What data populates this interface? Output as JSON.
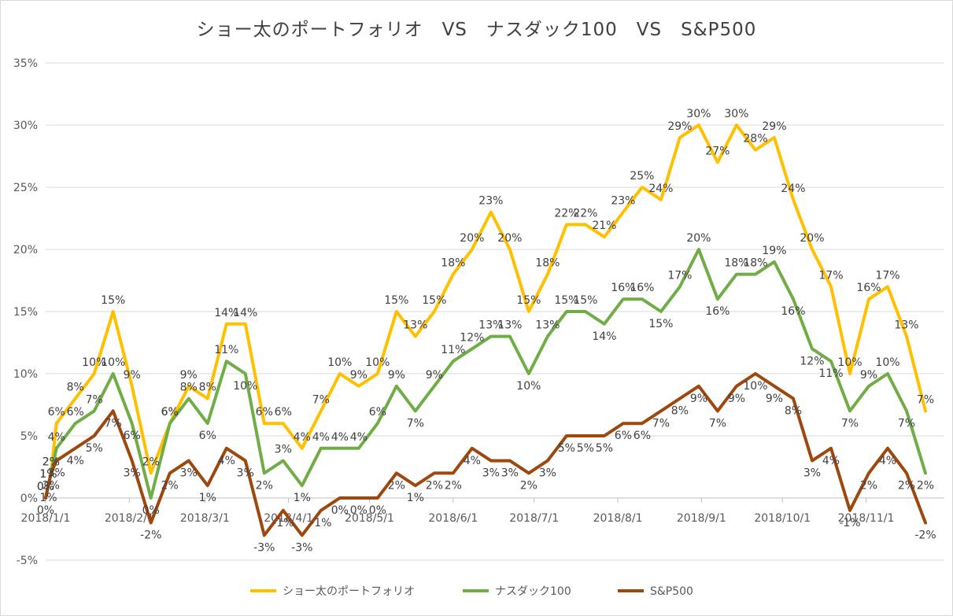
{
  "chart_data": {
    "type": "line",
    "title": "ショー太のポートフォリオ　VS　ナスダック100　VS　S&P500",
    "xlabel": "",
    "ylabel": "",
    "ylim": [
      -5,
      35
    ],
    "yticks": [
      35,
      30,
      25,
      20,
      15,
      10,
      5,
      0,
      -5
    ],
    "ytick_labels": [
      "35%",
      "30%",
      "25%",
      "20%",
      "15%",
      "10%",
      "5%",
      "0%",
      "-5%"
    ],
    "x_start": "2018-01-01",
    "x_end": "2018-11-30",
    "xtick_dates": [
      "2018-01-01",
      "2018-02-01",
      "2018-03-01",
      "2018-04-01",
      "2018-05-01",
      "2018-06-01",
      "2018-07-01",
      "2018-08-01",
      "2018-09-01",
      "2018-10-01",
      "2018-11-01"
    ],
    "xtick_labels": [
      "2018/1/1",
      "2018/2/1",
      "2018/3/1",
      "2018/4/1",
      "2018/5/1",
      "2018/6/1",
      "2018/7/1",
      "2018/8/1",
      "2018/9/1",
      "2018/10/1",
      "2018/11/1"
    ],
    "grid": "horizontal",
    "legend_position": "bottom",
    "series": [
      {
        "name": "ショー太のポートフォリオ",
        "color": "#ffc000",
        "points": [
          [
            "2018-01-01",
            0
          ],
          [
            "2018-01-02",
            1
          ],
          [
            "2018-01-03",
            2
          ],
          [
            "2018-01-05",
            6
          ],
          [
            "2018-01-12",
            8
          ],
          [
            "2018-01-19",
            10
          ],
          [
            "2018-01-26",
            15
          ],
          [
            "2018-02-02",
            9
          ],
          [
            "2018-02-09",
            2
          ],
          [
            "2018-02-16",
            6
          ],
          [
            "2018-02-23",
            9
          ],
          [
            "2018-03-02",
            8
          ],
          [
            "2018-03-09",
            14
          ],
          [
            "2018-03-16",
            14
          ],
          [
            "2018-03-23",
            6
          ],
          [
            "2018-03-30",
            6
          ],
          [
            "2018-04-06",
            4
          ],
          [
            "2018-04-13",
            7
          ],
          [
            "2018-04-20",
            10
          ],
          [
            "2018-04-27",
            9
          ],
          [
            "2018-05-04",
            10
          ],
          [
            "2018-05-11",
            15
          ],
          [
            "2018-05-18",
            13
          ],
          [
            "2018-05-25",
            15
          ],
          [
            "2018-06-01",
            18
          ],
          [
            "2018-06-08",
            20
          ],
          [
            "2018-06-15",
            23
          ],
          [
            "2018-06-22",
            20
          ],
          [
            "2018-06-29",
            15
          ],
          [
            "2018-07-06",
            18
          ],
          [
            "2018-07-13",
            22
          ],
          [
            "2018-07-20",
            22
          ],
          [
            "2018-07-27",
            21
          ],
          [
            "2018-08-03",
            23
          ],
          [
            "2018-08-10",
            25
          ],
          [
            "2018-08-17",
            24
          ],
          [
            "2018-08-24",
            29
          ],
          [
            "2018-08-31",
            30
          ],
          [
            "2018-09-07",
            27
          ],
          [
            "2018-09-14",
            30
          ],
          [
            "2018-09-21",
            28
          ],
          [
            "2018-09-28",
            29
          ],
          [
            "2018-10-05",
            24
          ],
          [
            "2018-10-12",
            20
          ],
          [
            "2018-10-19",
            17
          ],
          [
            "2018-10-26",
            10
          ],
          [
            "2018-11-02",
            16
          ],
          [
            "2018-11-09",
            17
          ],
          [
            "2018-11-16",
            13
          ],
          [
            "2018-11-23",
            7
          ]
        ]
      },
      {
        "name": "ナスダック100",
        "color": "#70ad47",
        "points": [
          [
            "2018-01-01",
            0
          ],
          [
            "2018-01-02",
            1
          ],
          [
            "2018-01-03",
            2
          ],
          [
            "2018-01-05",
            4
          ],
          [
            "2018-01-12",
            6
          ],
          [
            "2018-01-19",
            7
          ],
          [
            "2018-01-26",
            10
          ],
          [
            "2018-02-02",
            6
          ],
          [
            "2018-02-09",
            0
          ],
          [
            "2018-02-16",
            6
          ],
          [
            "2018-02-23",
            8
          ],
          [
            "2018-03-02",
            6
          ],
          [
            "2018-03-09",
            11
          ],
          [
            "2018-03-16",
            10
          ],
          [
            "2018-03-23",
            2
          ],
          [
            "2018-03-30",
            3
          ],
          [
            "2018-04-06",
            1
          ],
          [
            "2018-04-13",
            4
          ],
          [
            "2018-04-20",
            4
          ],
          [
            "2018-04-27",
            4
          ],
          [
            "2018-05-04",
            6
          ],
          [
            "2018-05-11",
            9
          ],
          [
            "2018-05-18",
            7
          ],
          [
            "2018-05-25",
            9
          ],
          [
            "2018-06-01",
            11
          ],
          [
            "2018-06-08",
            12
          ],
          [
            "2018-06-15",
            13
          ],
          [
            "2018-06-22",
            13
          ],
          [
            "2018-06-29",
            10
          ],
          [
            "2018-07-06",
            13
          ],
          [
            "2018-07-13",
            15
          ],
          [
            "2018-07-20",
            15
          ],
          [
            "2018-07-27",
            14
          ],
          [
            "2018-08-03",
            16
          ],
          [
            "2018-08-10",
            16
          ],
          [
            "2018-08-17",
            15
          ],
          [
            "2018-08-24",
            17
          ],
          [
            "2018-08-31",
            20
          ],
          [
            "2018-09-07",
            16
          ],
          [
            "2018-09-14",
            18
          ],
          [
            "2018-09-21",
            18
          ],
          [
            "2018-09-28",
            19
          ],
          [
            "2018-10-05",
            16
          ],
          [
            "2018-10-12",
            12
          ],
          [
            "2018-10-19",
            11
          ],
          [
            "2018-10-26",
            7
          ],
          [
            "2018-11-02",
            9
          ],
          [
            "2018-11-09",
            10
          ],
          [
            "2018-11-16",
            7
          ],
          [
            "2018-11-23",
            2
          ]
        ]
      },
      {
        "name": "S&P500",
        "color": "#9e480e",
        "points": [
          [
            "2018-01-01",
            0
          ],
          [
            "2018-01-02",
            1
          ],
          [
            "2018-01-03",
            2
          ],
          [
            "2018-01-05",
            3
          ],
          [
            "2018-01-12",
            4
          ],
          [
            "2018-01-19",
            5
          ],
          [
            "2018-01-26",
            7
          ],
          [
            "2018-02-02",
            3
          ],
          [
            "2018-02-09",
            -2
          ],
          [
            "2018-02-16",
            2
          ],
          [
            "2018-02-23",
            3
          ],
          [
            "2018-03-02",
            1
          ],
          [
            "2018-03-09",
            4
          ],
          [
            "2018-03-16",
            3
          ],
          [
            "2018-03-23",
            -3
          ],
          [
            "2018-03-30",
            -1
          ],
          [
            "2018-04-06",
            -3
          ],
          [
            "2018-04-13",
            -1
          ],
          [
            "2018-04-20",
            0
          ],
          [
            "2018-04-27",
            0
          ],
          [
            "2018-05-04",
            0
          ],
          [
            "2018-05-11",
            2
          ],
          [
            "2018-05-18",
            1
          ],
          [
            "2018-05-25",
            2
          ],
          [
            "2018-06-01",
            2
          ],
          [
            "2018-06-08",
            4
          ],
          [
            "2018-06-15",
            3
          ],
          [
            "2018-06-22",
            3
          ],
          [
            "2018-06-29",
            2
          ],
          [
            "2018-07-06",
            3
          ],
          [
            "2018-07-13",
            5
          ],
          [
            "2018-07-20",
            5
          ],
          [
            "2018-07-27",
            5
          ],
          [
            "2018-08-03",
            6
          ],
          [
            "2018-08-10",
            6
          ],
          [
            "2018-08-17",
            7
          ],
          [
            "2018-08-24",
            8
          ],
          [
            "2018-08-31",
            9
          ],
          [
            "2018-09-07",
            7
          ],
          [
            "2018-09-14",
            9
          ],
          [
            "2018-09-21",
            10
          ],
          [
            "2018-09-28",
            9
          ],
          [
            "2018-10-05",
            8
          ],
          [
            "2018-10-12",
            3
          ],
          [
            "2018-10-19",
            4
          ],
          [
            "2018-10-26",
            -1
          ],
          [
            "2018-11-02",
            2
          ],
          [
            "2018-11-09",
            4
          ],
          [
            "2018-11-16",
            2
          ],
          [
            "2018-11-23",
            -2
          ]
        ]
      }
    ]
  }
}
